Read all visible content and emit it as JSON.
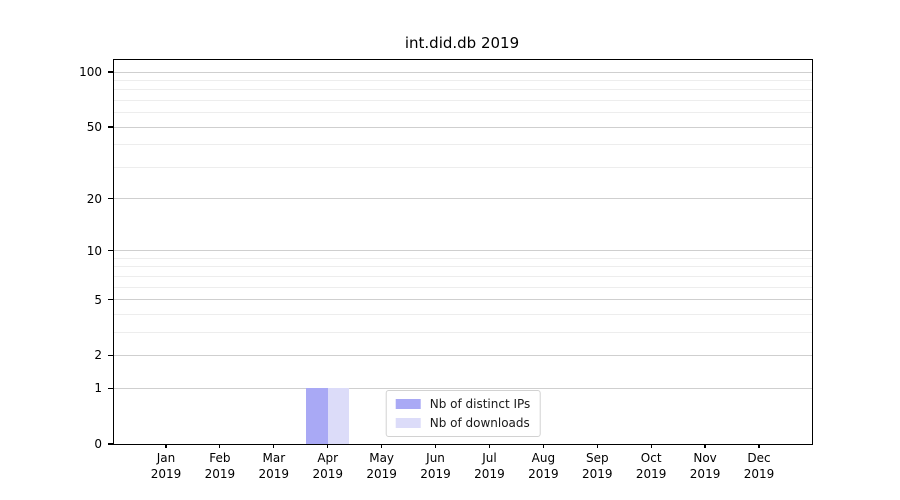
{
  "chart_data": {
    "type": "bar",
    "title": "int.did.db 2019",
    "x": [
      "Jan 2019",
      "Feb 2019",
      "Mar 2019",
      "Apr 2019",
      "May 2019",
      "Jun 2019",
      "Jul 2019",
      "Aug 2019",
      "Sep 2019",
      "Oct 2019",
      "Nov 2019",
      "Dec 2019"
    ],
    "series": [
      {
        "name": "Nb of distinct IPs",
        "color": "#a9a9f5",
        "values": [
          0,
          0,
          0,
          1,
          0,
          0,
          0,
          0,
          0,
          0,
          0,
          0
        ]
      },
      {
        "name": "Nb of downloads",
        "color": "#dcdcf9",
        "values": [
          0,
          0,
          0,
          1,
          0,
          0,
          0,
          0,
          0,
          0,
          0,
          0
        ]
      }
    ],
    "yscale": "log1p",
    "ylim": [
      0,
      100
    ],
    "y_major_ticks": [
      0,
      1,
      2,
      5,
      10,
      20,
      50,
      100
    ],
    "y_minor_ticks": [
      3,
      4,
      6,
      7,
      8,
      9,
      30,
      40,
      60,
      70,
      80,
      90
    ],
    "grid": "horizontal, major+minor",
    "legend_position": "lower center"
  },
  "colors": {
    "axis": "#000000",
    "major_grid": "#cfcfcf",
    "minor_grid": "#ededed",
    "legend_border": "#d2d2d2",
    "background": "#ffffff"
  }
}
